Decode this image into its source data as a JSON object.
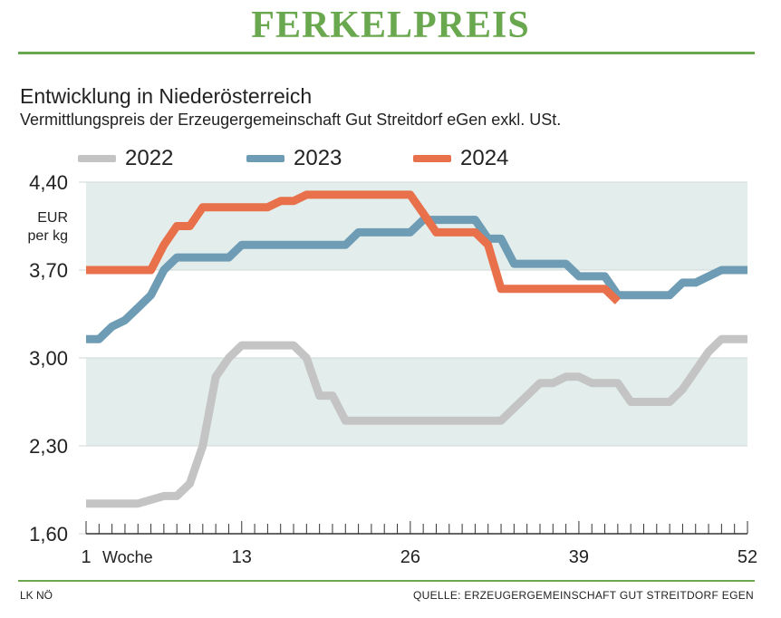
{
  "header": {
    "title": "FERKELPREIS"
  },
  "chart_data": {
    "type": "line",
    "title": "Entwicklung in Niederösterreich",
    "subtitle": "Vermittlungspreis der Erzeugergemeinschaft Gut Streitdorf eGen exkl. USt.",
    "ylabel": "EUR per kg",
    "xlabel": "Woche",
    "ylim": [
      1.6,
      4.4
    ],
    "xlim": [
      1,
      52
    ],
    "yticks": [
      "1,60",
      "2,30",
      "3,00",
      "3,70",
      "4,40"
    ],
    "xticks": [
      "1",
      "13",
      "26",
      "39",
      "52"
    ],
    "grid": "shaded bands",
    "legend": "top",
    "series": [
      {
        "name": "2022",
        "color": "#c4c4c4",
        "x": [
          1,
          2,
          3,
          4,
          5,
          6,
          7,
          8,
          9,
          10,
          11,
          12,
          13,
          14,
          15,
          16,
          17,
          18,
          19,
          20,
          21,
          22,
          23,
          24,
          25,
          26,
          27,
          28,
          29,
          30,
          31,
          32,
          33,
          34,
          35,
          36,
          37,
          38,
          39,
          40,
          41,
          42,
          43,
          44,
          45,
          46,
          47,
          48,
          49,
          50,
          51,
          52
        ],
        "values": [
          1.84,
          1.84,
          1.84,
          1.84,
          1.84,
          1.87,
          1.9,
          1.9,
          2.0,
          2.3,
          2.85,
          3.0,
          3.1,
          3.1,
          3.1,
          3.1,
          3.1,
          3.0,
          2.7,
          2.7,
          2.5,
          2.5,
          2.5,
          2.5,
          2.5,
          2.5,
          2.5,
          2.5,
          2.5,
          2.5,
          2.5,
          2.5,
          2.5,
          2.6,
          2.7,
          2.8,
          2.8,
          2.85,
          2.85,
          2.8,
          2.8,
          2.8,
          2.65,
          2.65,
          2.65,
          2.65,
          2.75,
          2.9,
          3.05,
          3.15,
          3.15,
          3.15
        ]
      },
      {
        "name": "2023",
        "color": "#6e9cb5",
        "x": [
          1,
          2,
          3,
          4,
          5,
          6,
          7,
          8,
          9,
          10,
          11,
          12,
          13,
          14,
          15,
          16,
          17,
          18,
          19,
          20,
          21,
          22,
          23,
          24,
          25,
          26,
          27,
          28,
          29,
          30,
          31,
          32,
          33,
          34,
          35,
          36,
          37,
          38,
          39,
          40,
          41,
          42,
          43,
          44,
          45,
          46,
          47,
          48,
          49,
          50,
          51,
          52
        ],
        "values": [
          3.15,
          3.15,
          3.25,
          3.3,
          3.4,
          3.5,
          3.7,
          3.8,
          3.8,
          3.8,
          3.8,
          3.8,
          3.9,
          3.9,
          3.9,
          3.9,
          3.9,
          3.9,
          3.9,
          3.9,
          3.9,
          4.0,
          4.0,
          4.0,
          4.0,
          4.0,
          4.1,
          4.1,
          4.1,
          4.1,
          4.1,
          3.95,
          3.95,
          3.75,
          3.75,
          3.75,
          3.75,
          3.75,
          3.65,
          3.65,
          3.65,
          3.5,
          3.5,
          3.5,
          3.5,
          3.5,
          3.6,
          3.6,
          3.65,
          3.7,
          3.7,
          3.7
        ]
      },
      {
        "name": "2024",
        "color": "#e8704a",
        "x": [
          1,
          2,
          3,
          4,
          5,
          6,
          7,
          8,
          9,
          10,
          11,
          12,
          13,
          14,
          15,
          16,
          17,
          18,
          19,
          20,
          21,
          22,
          23,
          24,
          25,
          26,
          27,
          28,
          29,
          30,
          31,
          32,
          33,
          34,
          35,
          36,
          37,
          38,
          39,
          40,
          41,
          42
        ],
        "values": [
          3.7,
          3.7,
          3.7,
          3.7,
          3.7,
          3.7,
          3.9,
          4.05,
          4.05,
          4.2,
          4.2,
          4.2,
          4.2,
          4.2,
          4.2,
          4.25,
          4.25,
          4.3,
          4.3,
          4.3,
          4.3,
          4.3,
          4.3,
          4.3,
          4.3,
          4.3,
          4.15,
          4.0,
          4.0,
          4.0,
          4.0,
          3.9,
          3.55,
          3.55,
          3.55,
          3.55,
          3.55,
          3.55,
          3.55,
          3.55,
          3.55,
          3.45
        ]
      }
    ]
  },
  "footer": {
    "credit": "LK NÖ",
    "source": "QUELLE: ERZEUGERGEMEINSCHAFT GUT STREITDORF EGEN"
  },
  "colors": {
    "accent": "#6aa84f",
    "band": "#e3eeec"
  }
}
